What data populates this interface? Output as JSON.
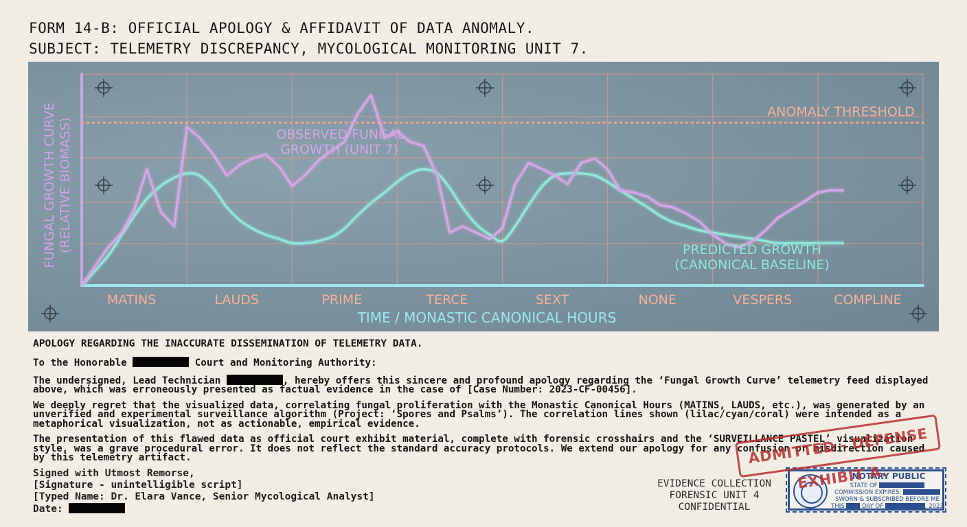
{
  "header": {
    "line1": "FORM 14-B: OFFICIAL APOLOGY & AFFIDAVIT OF DATA ANOMALY.",
    "line2": "SUBJECT: TELEMETRY DISCREPANCY, MYCOLOGICAL MONITORING UNIT 7."
  },
  "chart_data": {
    "type": "line",
    "xlabel": "TIME / MONASTIC CANONICAL HOURS",
    "ylabel_line1": "FUNGAL GROWTH CURVE",
    "ylabel_line2": "(RELATIVE BIOMASS)",
    "categories": [
      "MATINS",
      "LAUDS",
      "PRIME",
      "TERCE",
      "SEXT",
      "NONE",
      "VESPERS",
      "COMPLINE"
    ],
    "threshold_label": "ANOMALY THRESHOLD",
    "threshold_value": 0.77,
    "observed_label_line1": "OBSERVED FUNGAL",
    "observed_label_line2": "GROWTH (UNIT 7)",
    "predicted_label_line1": "PREDICTED GROWTH",
    "predicted_label_line2": "(CANONICAL BASELINE)",
    "x": [
      0,
      0.25,
      0.38,
      0.5,
      0.62,
      0.75,
      0.88,
      1.0,
      1.12,
      1.25,
      1.38,
      1.5,
      1.62,
      1.75,
      1.88,
      2.0,
      2.12,
      2.25,
      2.38,
      2.5,
      2.62,
      2.75,
      2.88,
      3.0,
      3.12,
      3.25,
      3.38,
      3.5,
      3.62,
      3.75,
      3.88,
      4.0,
      4.12,
      4.25,
      4.38,
      4.5,
      4.62,
      4.75,
      4.88,
      5.0,
      5.12,
      5.25,
      5.38,
      5.5,
      5.62,
      5.75,
      5.88,
      6.0,
      6.12,
      6.25,
      6.38,
      6.5,
      6.62,
      6.75,
      6.88,
      7.0,
      7.12,
      7.25
    ],
    "series": [
      {
        "values": [
          0.0,
          0.18,
          0.25,
          0.36,
          0.55,
          0.35,
          0.28,
          0.75,
          0.7,
          0.62,
          0.52,
          0.57,
          0.6,
          0.62,
          0.56,
          0.47,
          0.52,
          0.59,
          0.64,
          0.68,
          0.81,
          0.9,
          0.7,
          0.73,
          0.68,
          0.66,
          0.52,
          0.25,
          0.28,
          0.25,
          0.22,
          0.27,
          0.48,
          0.58,
          0.55,
          0.52,
          0.48,
          0.58,
          0.6,
          0.55,
          0.45,
          0.44,
          0.42,
          0.38,
          0.37,
          0.34,
          0.3,
          0.24,
          0.2,
          0.18,
          0.21,
          0.26,
          0.32,
          0.36,
          0.4,
          0.44,
          0.45,
          0.45
        ]
      },
      {
        "values": [
          0.0,
          0.14,
          0.24,
          0.33,
          0.41,
          0.47,
          0.51,
          0.53,
          0.52,
          0.46,
          0.37,
          0.31,
          0.27,
          0.24,
          0.22,
          0.2,
          0.2,
          0.21,
          0.23,
          0.27,
          0.33,
          0.39,
          0.44,
          0.49,
          0.53,
          0.55,
          0.53,
          0.46,
          0.37,
          0.29,
          0.24,
          0.21,
          0.28,
          0.38,
          0.47,
          0.52,
          0.53,
          0.53,
          0.52,
          0.49,
          0.45,
          0.41,
          0.37,
          0.33,
          0.3,
          0.28,
          0.26,
          0.25,
          0.24,
          0.23,
          0.22,
          0.21,
          0.2,
          0.2,
          0.2,
          0.2,
          0.2,
          0.2
        ]
      }
    ],
    "xlim": [
      0,
      8
    ],
    "ylim": [
      0,
      1
    ],
    "grid": true,
    "colors": {
      "observed": "#d6a6e6",
      "predicted": "#8fe8da",
      "threshold": "#f2a48a",
      "grid": "#e59a86",
      "tick_label": "#f6b29c",
      "axis_label": "#9ae8ef",
      "ylabel": "#d2a3e8",
      "panel": "#7f95a1"
    }
  },
  "doc": {
    "title": "APOLOGY REGARDING THE INACCURATE DISSEMINATION OF TELEMETRY DATA.",
    "salute_pre": "To the Honorable",
    "salute_post": "Court and Monitoring Authority:",
    "p1_pre": "The undersigned, Lead Technician",
    "p1_post": ", hereby offers this sincere and profound apology regarding the ‘Fungal Growth Curve’ telemetry feed displayed above, which was erroneously presented as factual evidence in the case of [Case Number: 2023-CF-00456].",
    "p2": "We deeply regret that the visualized data, correlating fungal proliferation with the Monastic Canonical Hours (MATINS, LAUDS, etc.), was generated by an unverified and experimental surveillance algorithm (Project: ‘Spores and Psalms’). The correlation lines shown (lilac/cyan/coral) were intended as a metaphorical visualization, not as actionable, empirical evidence.",
    "p3": "The presentation of this flawed data as official court exhibit material, complete with forensic crosshairs and the ‘SURVEILLANCE PASTEL’ visualization style, was a grave procedural error. It does not reflect the standard accuracy protocols. We extend our apology for any confusion or misdirection caused by this telemetry artifact."
  },
  "signature": {
    "line1": "Signed with Utmost Remorse,",
    "line2": "[Signature - unintelligible script]",
    "line3": "[Typed Name: Dr. Elara Vance, Senior Mycological Analyst]",
    "date_label": "Date:"
  },
  "evidence": {
    "line1": "EVIDENCE COLLECTION",
    "line2": "FORENSIC UNIT 4",
    "line3": "CONFIDENTIAL"
  },
  "stamp": {
    "text": "ADMITTED - DEFENSE EXHIBIT A."
  },
  "notary": {
    "title": "NOTARY PUBLIC",
    "state": "STATE OF",
    "expires": "COMMISSION EXPIRES:",
    "sworn": "SWORN & SUBSCRIBED BEFORE ME",
    "this": "THIS",
    "day_of": "DAY OF",
    "year": ", 2023"
  }
}
